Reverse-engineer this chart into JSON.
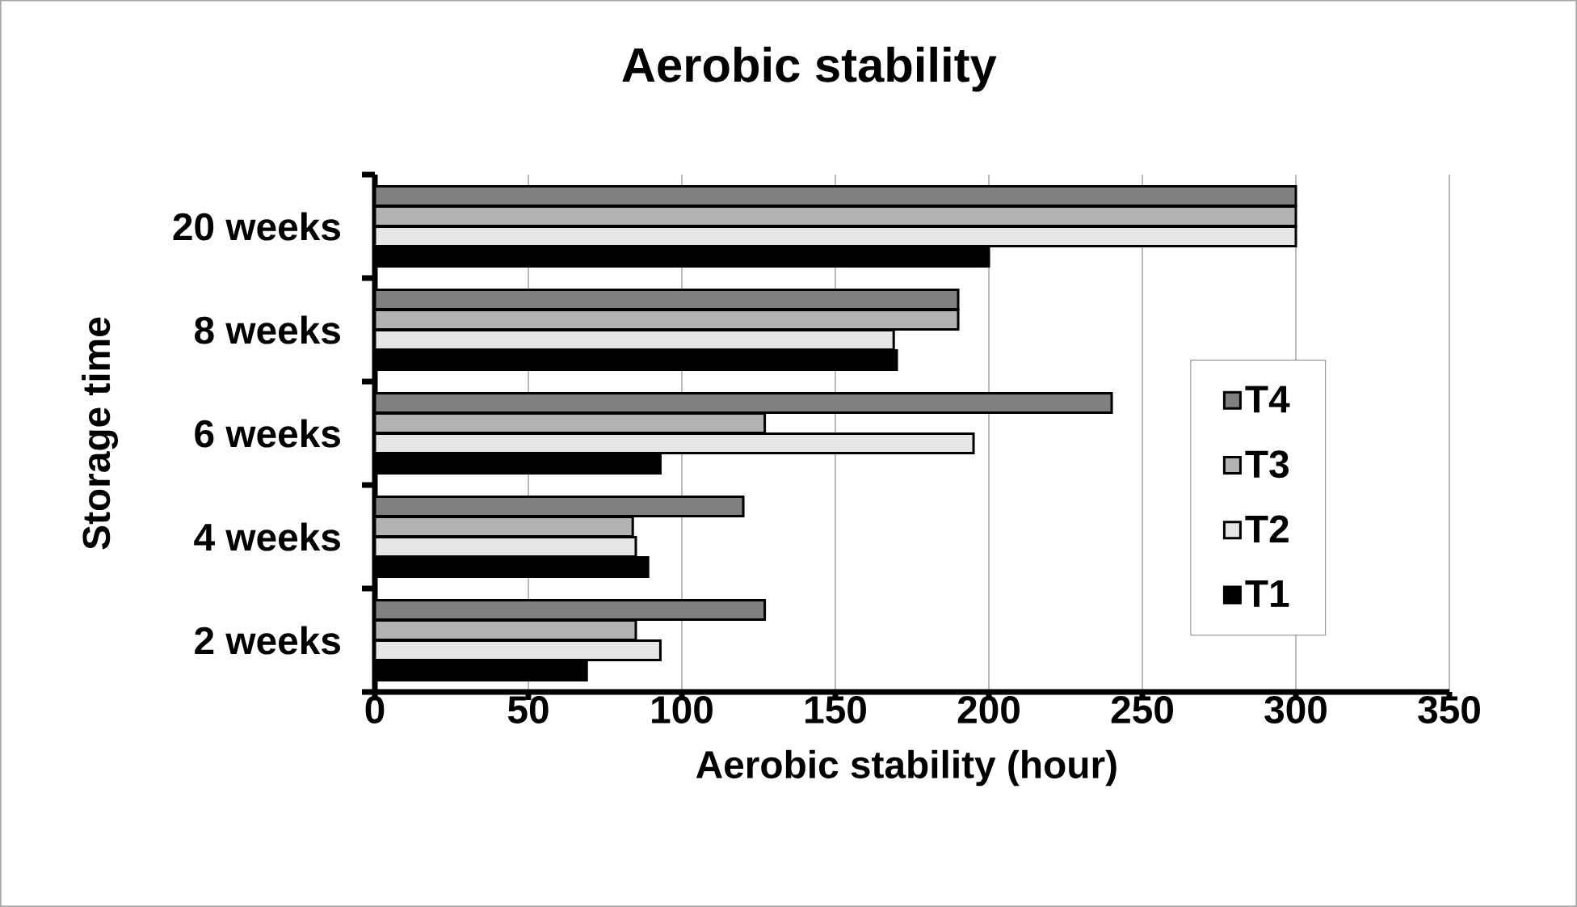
{
  "chart_data": {
    "type": "bar",
    "orientation": "horizontal",
    "title": "Aerobic stability",
    "xlabel": "Aerobic stability (hour)",
    "ylabel": "Storage time",
    "categories": [
      "20 weeks",
      "8 weeks",
      "6 weeks",
      "4 weeks",
      "2 weeks"
    ],
    "series": [
      {
        "name": "T4",
        "color": "#808080",
        "values": [
          300,
          190,
          240,
          120,
          127
        ]
      },
      {
        "name": "T3",
        "color": "#b3b3b3",
        "values": [
          300,
          190,
          127,
          84,
          85
        ]
      },
      {
        "name": "T2",
        "color": "#e6e6e6",
        "values": [
          300,
          169,
          195,
          85,
          93
        ]
      },
      {
        "name": "T1",
        "color": "#000000",
        "values": [
          200,
          170,
          93,
          89,
          69
        ]
      }
    ],
    "xlim": [
      0,
      350
    ],
    "xticks": [
      0,
      50,
      100,
      150,
      200,
      250,
      300,
      350
    ],
    "grid": "x",
    "legend": "right"
  }
}
